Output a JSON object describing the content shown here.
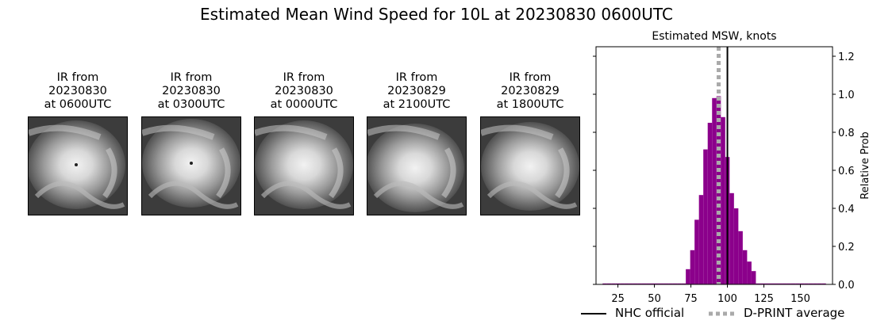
{
  "title": "Estimated Mean Wind Speed for 10L at 20230830 0600UTC",
  "panels": [
    {
      "line1": "IR from",
      "line2": "20230830",
      "line3": "at 0600UTC",
      "icon": "hurricane-ir-image"
    },
    {
      "line1": "IR from",
      "line2": "20230830",
      "line3": "at 0300UTC",
      "icon": "hurricane-ir-image"
    },
    {
      "line1": "IR from",
      "line2": "20230830",
      "line3": "at 0000UTC",
      "icon": "hurricane-ir-image"
    },
    {
      "line1": "IR from",
      "line2": "20230829",
      "line3": "at 2100UTC",
      "icon": "hurricane-ir-image"
    },
    {
      "line1": "IR from",
      "line2": "20230829",
      "line3": "at 1800UTC",
      "icon": "hurricane-ir-image"
    }
  ],
  "chart_data": {
    "type": "bar",
    "title": "Estimated MSW, knots",
    "xlabel": "",
    "ylabel": "Relative Prob",
    "xlim": [
      10,
      172
    ],
    "ylim": [
      0,
      1.25
    ],
    "xticks": [
      "25",
      "50",
      "75",
      "100",
      "125",
      "150"
    ],
    "yticks": [
      "0.0",
      "0.2",
      "0.4",
      "0.6",
      "0.8",
      "1.0",
      "1.2"
    ],
    "bar_width": 3,
    "bars": [
      {
        "x": 16,
        "y": 0.005
      },
      {
        "x": 19,
        "y": 0.005
      },
      {
        "x": 22,
        "y": 0.005
      },
      {
        "x": 25,
        "y": 0.005
      },
      {
        "x": 28,
        "y": 0.005
      },
      {
        "x": 31,
        "y": 0.005
      },
      {
        "x": 34,
        "y": 0.005
      },
      {
        "x": 37,
        "y": 0.005
      },
      {
        "x": 40,
        "y": 0.005
      },
      {
        "x": 43,
        "y": 0.005
      },
      {
        "x": 46,
        "y": 0.005
      },
      {
        "x": 49,
        "y": 0.005
      },
      {
        "x": 52,
        "y": 0.005
      },
      {
        "x": 55,
        "y": 0.005
      },
      {
        "x": 58,
        "y": 0.005
      },
      {
        "x": 61,
        "y": 0.005
      },
      {
        "x": 64,
        "y": 0.005
      },
      {
        "x": 67,
        "y": 0.005
      },
      {
        "x": 70,
        "y": 0.005
      },
      {
        "x": 73,
        "y": 0.08
      },
      {
        "x": 76,
        "y": 0.18
      },
      {
        "x": 79,
        "y": 0.34
      },
      {
        "x": 82,
        "y": 0.47
      },
      {
        "x": 85,
        "y": 0.71
      },
      {
        "x": 88,
        "y": 0.85
      },
      {
        "x": 91,
        "y": 0.98
      },
      {
        "x": 94,
        "y": 0.99
      },
      {
        "x": 97,
        "y": 0.88
      },
      {
        "x": 100,
        "y": 0.67
      },
      {
        "x": 103,
        "y": 0.48
      },
      {
        "x": 106,
        "y": 0.4
      },
      {
        "x": 109,
        "y": 0.28
      },
      {
        "x": 112,
        "y": 0.18
      },
      {
        "x": 115,
        "y": 0.12
      },
      {
        "x": 118,
        "y": 0.07
      },
      {
        "x": 121,
        "y": 0.005
      },
      {
        "x": 124,
        "y": 0.005
      },
      {
        "x": 127,
        "y": 0.005
      },
      {
        "x": 130,
        "y": 0.005
      },
      {
        "x": 133,
        "y": 0.005
      },
      {
        "x": 136,
        "y": 0.005
      },
      {
        "x": 139,
        "y": 0.005
      },
      {
        "x": 142,
        "y": 0.005
      },
      {
        "x": 145,
        "y": 0.005
      },
      {
        "x": 148,
        "y": 0.005
      },
      {
        "x": 151,
        "y": 0.005
      },
      {
        "x": 154,
        "y": 0.005
      },
      {
        "x": 157,
        "y": 0.005
      },
      {
        "x": 160,
        "y": 0.005
      },
      {
        "x": 163,
        "y": 0.005
      },
      {
        "x": 166,
        "y": 0.005
      }
    ],
    "bar_color": "#8b008b",
    "lines": [
      {
        "name": "NHC official",
        "x": 100,
        "color": "#000000",
        "style": "solid"
      },
      {
        "name": "D-PRINT average",
        "x": 94,
        "color": "#aaaaaa",
        "style": "dotted"
      }
    ],
    "legend": "bottom-center"
  }
}
